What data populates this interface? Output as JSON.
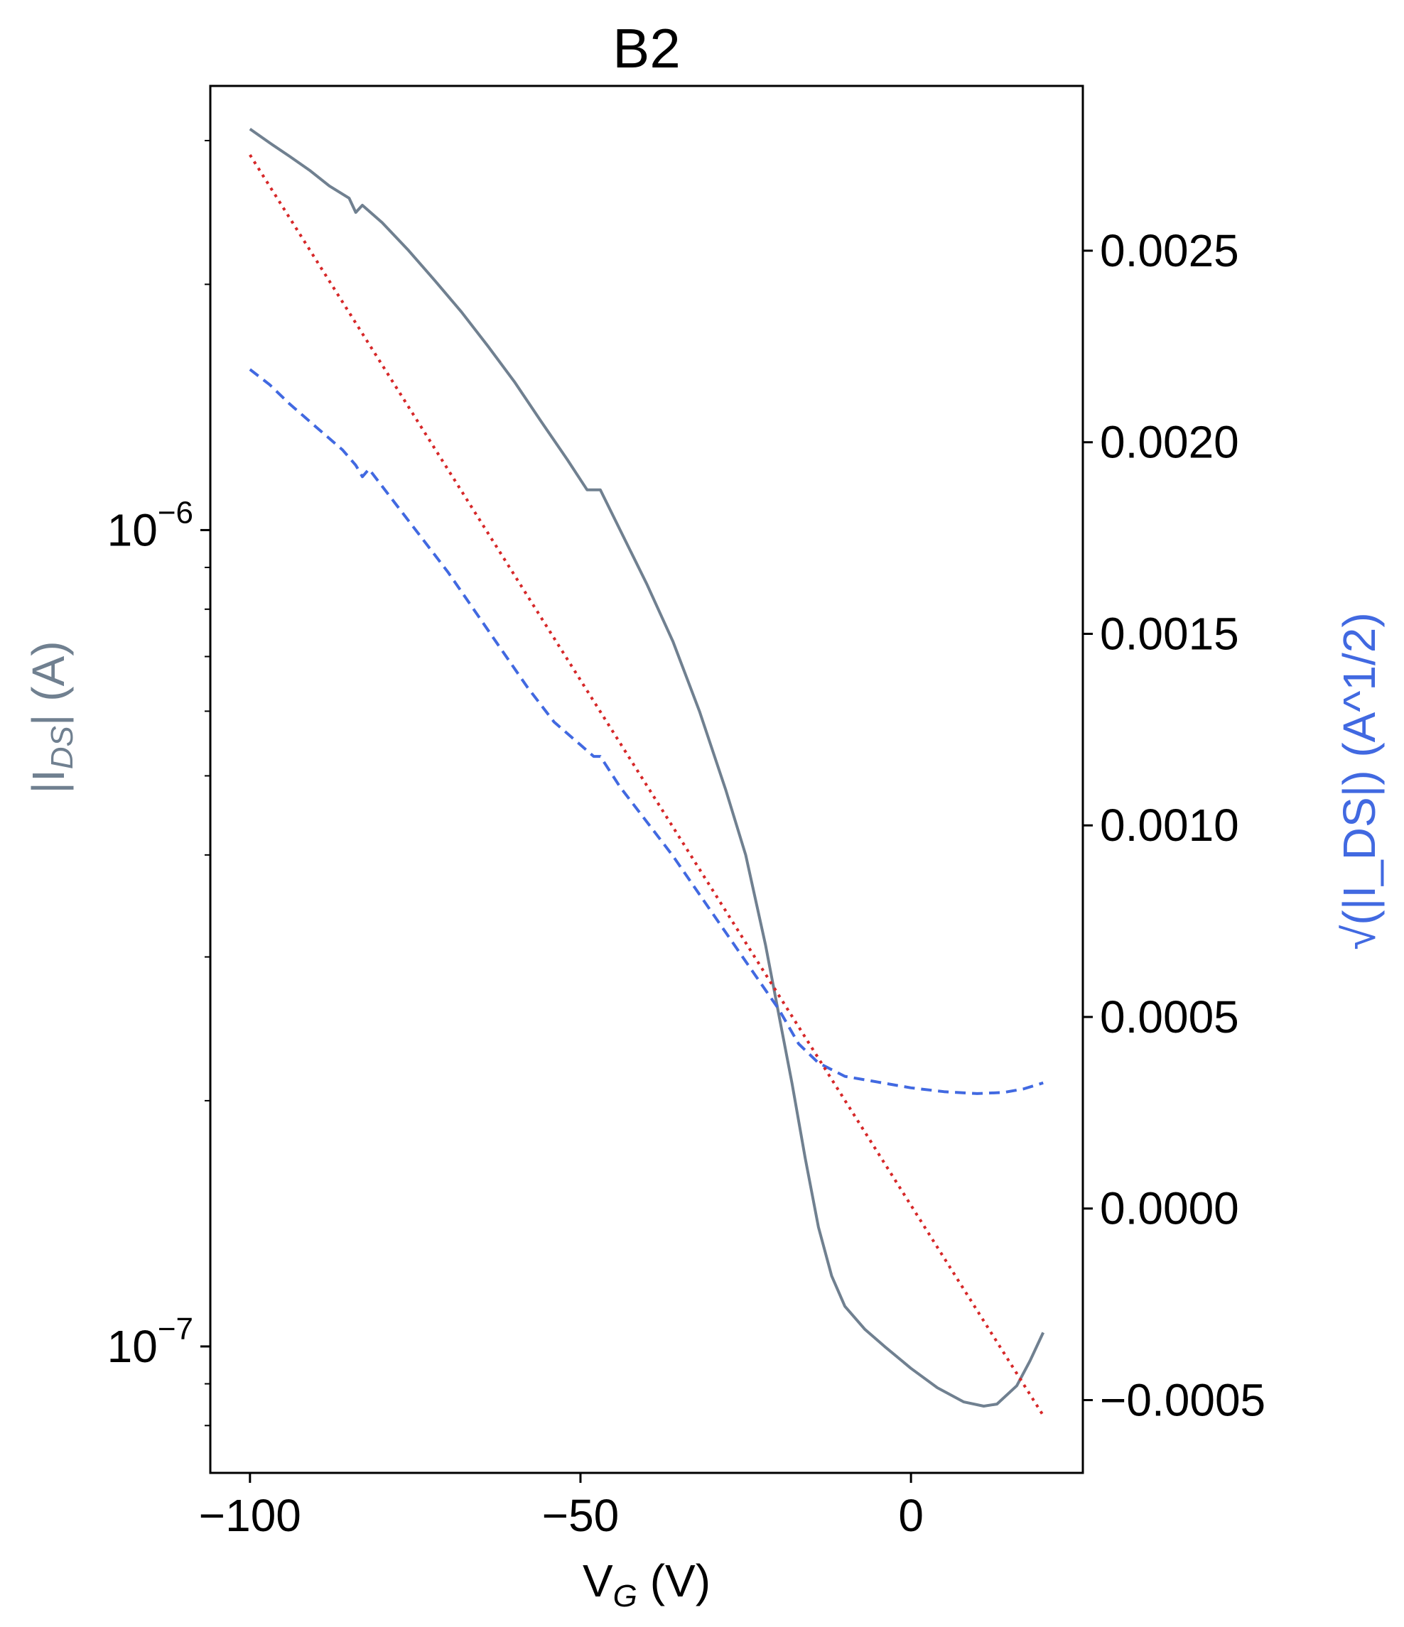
{
  "chart_data": {
    "type": "line",
    "title": "B2",
    "xlabel": {
      "base": "V",
      "sub": "G",
      "unit": " (V)"
    },
    "ylabel_left": {
      "prefix": "|I",
      "sub": "DS",
      "suffix": "| (A)",
      "color": "#708090"
    },
    "ylabel_right": {
      "text": "√(|I_DS|) (A^1/2)",
      "color": "#4169e1"
    },
    "xlim": [
      -106,
      26
    ],
    "ylim_left": [
      0.07,
      3.5e-06
    ],
    "yscale_left": "log",
    "ylim_right": [
      -0.00069,
      0.00293
    ],
    "x_ticks": [
      {
        "value": -100,
        "label": "−100"
      },
      {
        "value": -50,
        "label": "−50"
      },
      {
        "value": 0,
        "label": "0"
      }
    ],
    "y_left_major_ticks": [
      {
        "value": 1e-07,
        "base": "10",
        "exp": "−7"
      },
      {
        "value": 1e-06,
        "base": "10",
        "exp": "−6"
      }
    ],
    "y_right_ticks": [
      {
        "value": 0.0025,
        "label": "0.0025"
      },
      {
        "value": 0.002,
        "label": "0.0020"
      },
      {
        "value": 0.0015,
        "label": "0.0015"
      },
      {
        "value": 0.001,
        "label": "0.0010"
      },
      {
        "value": 0.0005,
        "label": "0.0005"
      },
      {
        "value": 0.0,
        "label": "0.0000"
      },
      {
        "value": -0.0005,
        "label": "−0.0005"
      }
    ],
    "grid": false,
    "legend": "none",
    "series": [
      {
        "axis": "left",
        "color": "#708090",
        "style": "solid",
        "points": [
          [
            -100,
            3.1e-06
          ],
          [
            -97,
            2.98e-06
          ],
          [
            -94,
            2.87e-06
          ],
          [
            -91,
            2.76e-06
          ],
          [
            -88,
            2.64e-06
          ],
          [
            -85,
            2.55e-06
          ],
          [
            -84,
            2.45e-06
          ],
          [
            -83,
            2.5e-06
          ],
          [
            -80,
            2.38e-06
          ],
          [
            -76,
            2.2e-06
          ],
          [
            -72,
            2.02e-06
          ],
          [
            -68,
            1.85e-06
          ],
          [
            -64,
            1.68e-06
          ],
          [
            -60,
            1.52e-06
          ],
          [
            -56,
            1.36e-06
          ],
          [
            -52,
            1.22e-06
          ],
          [
            -49,
            1.12e-06
          ],
          [
            -47,
            1.12e-06
          ],
          [
            -44,
            1e-06
          ],
          [
            -40,
            8.6e-07
          ],
          [
            -36,
            7.3e-07
          ],
          [
            -32,
            6e-07
          ],
          [
            -28,
            4.8e-07
          ],
          [
            -25,
            4e-07
          ],
          [
            -22,
            3.1e-07
          ],
          [
            -20,
            2.55e-07
          ],
          [
            -18,
            2.1e-07
          ],
          [
            -16,
            1.7e-07
          ],
          [
            -14,
            1.4e-07
          ],
          [
            -12,
            1.22e-07
          ],
          [
            -10,
            1.12e-07
          ],
          [
            -7,
            1.05e-07
          ],
          [
            -4,
            1e-07
          ],
          [
            0,
            9.4e-08
          ],
          [
            4,
            8.9e-08
          ],
          [
            8,
            8.55e-08
          ],
          [
            11,
            8.45e-08
          ],
          [
            13,
            8.5e-08
          ],
          [
            16,
            8.95e-08
          ],
          [
            18,
            9.6e-08
          ],
          [
            20,
            1.04e-07
          ]
        ]
      },
      {
        "axis": "right",
        "color": "#4169e1",
        "style": "dashed",
        "points": [
          [
            -100,
            0.00219
          ],
          [
            -97,
            0.00215
          ],
          [
            -94,
            0.0021
          ],
          [
            -90,
            0.00204
          ],
          [
            -86,
            0.00198
          ],
          [
            -84,
            0.00194
          ],
          [
            -83,
            0.00191
          ],
          [
            -82,
            0.00193
          ],
          [
            -78,
            0.00184
          ],
          [
            -74,
            0.00175
          ],
          [
            -70,
            0.00166
          ],
          [
            -66,
            0.00156
          ],
          [
            -62,
            0.00146
          ],
          [
            -58,
            0.00136
          ],
          [
            -54,
            0.00127
          ],
          [
            -50,
            0.00121
          ],
          [
            -48,
            0.00118
          ],
          [
            -47,
            0.00118
          ],
          [
            -44,
            0.0011
          ],
          [
            -40,
            0.00101
          ],
          [
            -36,
            0.00092
          ],
          [
            -32,
            0.00082
          ],
          [
            -28,
            0.00072
          ],
          [
            -24,
            0.00062
          ],
          [
            -20,
            0.00052
          ],
          [
            -17,
            0.00043
          ],
          [
            -14,
            0.00038
          ],
          [
            -10,
            0.000345
          ],
          [
            -5,
            0.00033
          ],
          [
            0,
            0.000315
          ],
          [
            5,
            0.000305
          ],
          [
            10,
            0.0003
          ],
          [
            14,
            0.000303
          ],
          [
            17,
            0.000312
          ],
          [
            20,
            0.000328
          ]
        ]
      },
      {
        "axis": "right",
        "color": "#d62728",
        "style": "dotted",
        "points": [
          [
            -100,
            0.00275
          ],
          [
            20,
            -0.00054
          ]
        ]
      }
    ]
  }
}
